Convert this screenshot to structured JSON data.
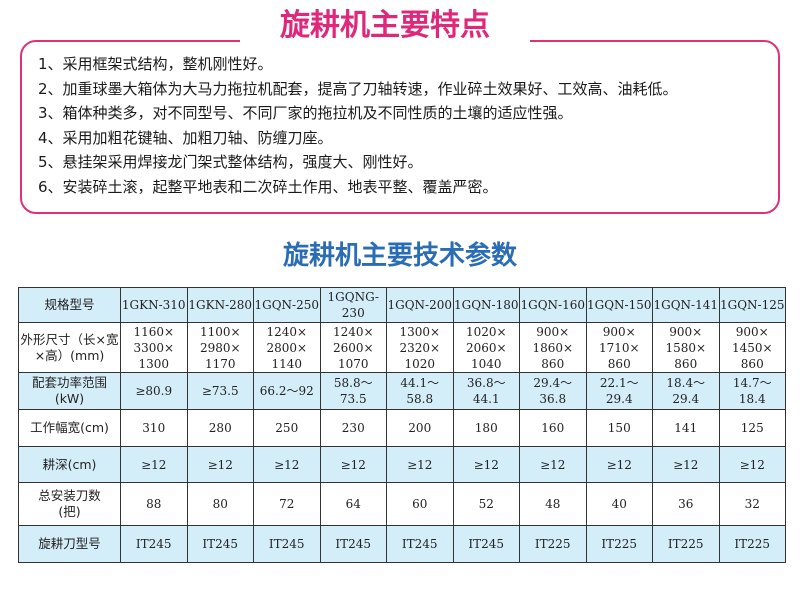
{
  "features": {
    "title": "旋耕机主要特点",
    "items": [
      "1、采用框架式结构，整机刚性好。",
      "2、加重球墨大箱体为大马力拖拉机配套，提高了刀轴转速，作业碎土效果好、工效高、油耗低。",
      "3、箱体种类多，对不同型号、不同厂家的拖拉机及不同性质的土壤的适应性强。",
      "4、采用加粗花键轴、加粗刀轴、防缠刀座。",
      "5、悬挂架采用焊接龙门架式整体结构，强度大、刚性好。",
      "6、安装碎土滚，起整平地表和二次碎土作用、地表平整、覆盖严密。"
    ]
  },
  "specs": {
    "title": "旋耕机主要技术参数",
    "rows": [
      {
        "label": "规格型号",
        "values": [
          "1GKN-310",
          "1GKN-280",
          "1GQN-250",
          "1GQNG-230",
          "1GQN-200",
          "1GQN-180",
          "1GQN-160",
          "1GQN-150",
          "1GQN-141",
          "1GQN-125"
        ]
      },
      {
        "label": "外形尺寸（长×宽×高）(mm)",
        "values": [
          "1160×\n3300×\n1300",
          "1100×\n2980×\n1170",
          "1240×\n2800×\n1140",
          "1240×\n2600×\n1070",
          "1300×\n2320×\n1020",
          "1020×\n2060×\n1040",
          "900×\n1860×\n860",
          "900×\n1710×\n860",
          "900×\n1580×\n860",
          "900×\n1450×\n860"
        ]
      },
      {
        "label": "配套功率范围\n(kW)",
        "values": [
          "≥80.9",
          "≥73.5",
          "66.2～92",
          "58.8～\n73.5",
          "44.1～\n58.8",
          "36.8～\n44.1",
          "29.4～\n36.8",
          "22.1～\n29.4",
          "18.4～\n29.4",
          "14.7～\n18.4"
        ]
      },
      {
        "label": "工作幅宽(cm)",
        "values": [
          "310",
          "280",
          "250",
          "230",
          "200",
          "180",
          "160",
          "150",
          "141",
          "125"
        ]
      },
      {
        "label": "耕深(cm)",
        "values": [
          "≥12",
          "≥12",
          "≥12",
          "≥12",
          "≥12",
          "≥12",
          "≥12",
          "≥12",
          "≥12",
          "≥12"
        ]
      },
      {
        "label": "总安装刀数\n(把)",
        "values": [
          "88",
          "80",
          "72",
          "64",
          "60",
          "52",
          "48",
          "40",
          "36",
          "32"
        ]
      },
      {
        "label": "旋耕刀型号",
        "values": [
          "IT245",
          "IT245",
          "IT245",
          "IT245",
          "IT245",
          "IT245",
          "IT225",
          "IT225",
          "IT225",
          "IT225"
        ]
      }
    ]
  }
}
